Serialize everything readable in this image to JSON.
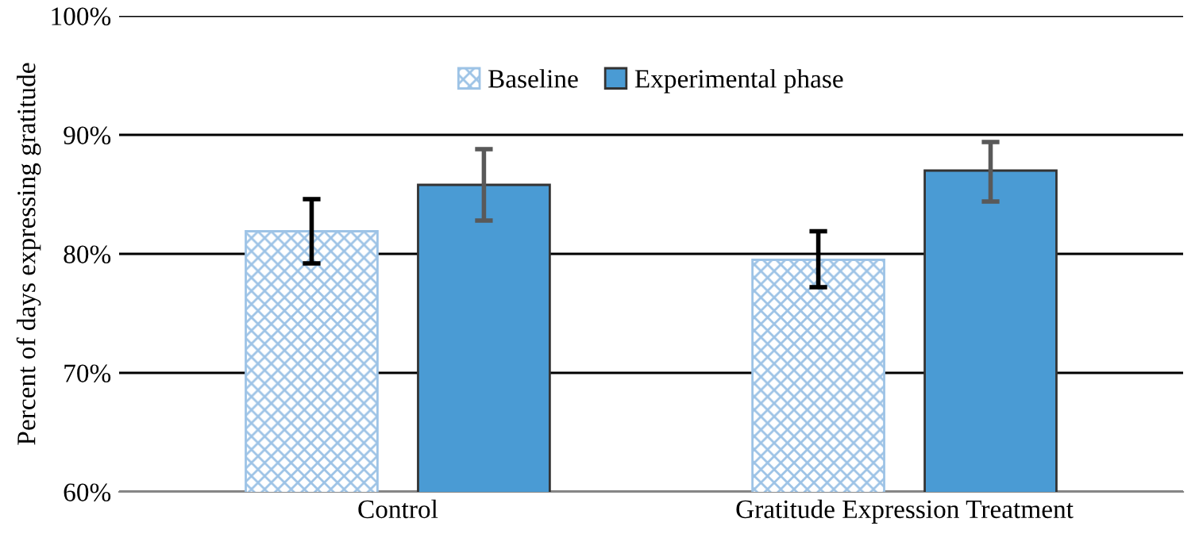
{
  "chart_data": {
    "type": "bar",
    "ylabel": "Percent of days expressing gratitude",
    "categories": [
      "Control",
      "Gratitude Expression Treatment"
    ],
    "series": [
      {
        "name": "Baseline",
        "color": "#9dc3e6",
        "values": [
          81.9,
          79.5
        ],
        "errors": [
          [
            79.2,
            84.6
          ],
          [
            77.2,
            81.9
          ]
        ]
      },
      {
        "name": "Experimental phase",
        "color": "#4a9bd4",
        "values": [
          85.8,
          87.0
        ],
        "errors": [
          [
            82.8,
            88.8
          ],
          [
            84.4,
            89.4
          ]
        ]
      }
    ],
    "ylim": [
      60,
      100
    ],
    "yticks": [
      {
        "value": 60,
        "label": "60%"
      },
      {
        "value": 70,
        "label": "70%"
      },
      {
        "value": 80,
        "label": "80%"
      },
      {
        "value": 90,
        "label": "90%"
      },
      {
        "value": 100,
        "label": "100%"
      }
    ],
    "grid": "y",
    "legend": "top"
  }
}
